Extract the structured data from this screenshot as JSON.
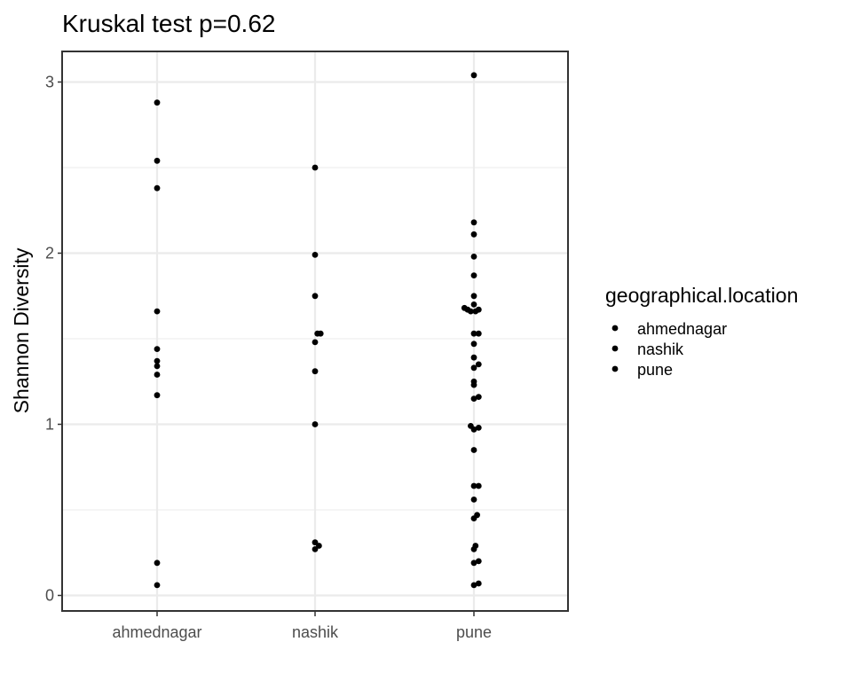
{
  "chart_data": {
    "type": "scatter",
    "title": "Kruskal test p=0.62",
    "xlabel": "",
    "ylabel": "Shannon Diversity",
    "categories": [
      "ahmednagar",
      "nashik",
      "pune"
    ],
    "y_ticks": [
      "0",
      "1",
      "2",
      "3"
    ],
    "ylim": [
      -0.09,
      3.12
    ],
    "grid": true,
    "legend": {
      "title": "geographical.location",
      "position": "right",
      "entries": [
        "ahmednagar",
        "nashik",
        "pune"
      ]
    },
    "point_color": "#000000",
    "series": [
      {
        "name": "ahmednagar",
        "points": [
          {
            "x": 0,
            "y": 2.88
          },
          {
            "x": 0,
            "y": 2.54
          },
          {
            "x": 0,
            "y": 2.38
          },
          {
            "x": 0,
            "y": 1.66
          },
          {
            "x": 0,
            "y": 1.44
          },
          {
            "x": 0,
            "y": 1.37
          },
          {
            "x": 0,
            "y": 1.34
          },
          {
            "x": 0,
            "y": 1.29
          },
          {
            "x": 0,
            "y": 1.17
          },
          {
            "x": 0,
            "y": 0.19
          },
          {
            "x": 0,
            "y": 0.06
          }
        ]
      },
      {
        "name": "nashik",
        "points": [
          {
            "x": 0,
            "y": 2.5
          },
          {
            "x": 0,
            "y": 1.99
          },
          {
            "x": 0,
            "y": 1.75
          },
          {
            "x": 0.015,
            "y": 1.53
          },
          {
            "x": 0.035,
            "y": 1.53
          },
          {
            "x": 0,
            "y": 1.48
          },
          {
            "x": 0,
            "y": 1.31
          },
          {
            "x": 0,
            "y": 1.0
          },
          {
            "x": 0,
            "y": 0.31
          },
          {
            "x": 0.025,
            "y": 0.29
          },
          {
            "x": 0,
            "y": 0.27
          }
        ]
      },
      {
        "name": "pune",
        "points": [
          {
            "x": 0,
            "y": 3.04
          },
          {
            "x": 0,
            "y": 2.18
          },
          {
            "x": 0,
            "y": 2.11
          },
          {
            "x": 0,
            "y": 1.98
          },
          {
            "x": 0,
            "y": 1.87
          },
          {
            "x": 0,
            "y": 1.75
          },
          {
            "x": 0,
            "y": 1.7
          },
          {
            "x": -0.06,
            "y": 1.68
          },
          {
            "x": -0.04,
            "y": 1.67
          },
          {
            "x": -0.02,
            "y": 1.66
          },
          {
            "x": 0.01,
            "y": 1.66
          },
          {
            "x": 0.03,
            "y": 1.67
          },
          {
            "x": 0,
            "y": 1.53
          },
          {
            "x": 0.03,
            "y": 1.53
          },
          {
            "x": 0,
            "y": 1.47
          },
          {
            "x": 0,
            "y": 1.39
          },
          {
            "x": 0,
            "y": 1.33
          },
          {
            "x": 0.03,
            "y": 1.35
          },
          {
            "x": 0,
            "y": 1.25
          },
          {
            "x": 0,
            "y": 1.23
          },
          {
            "x": 0,
            "y": 1.15
          },
          {
            "x": 0.03,
            "y": 1.16
          },
          {
            "x": -0.02,
            "y": 0.99
          },
          {
            "x": 0,
            "y": 0.97
          },
          {
            "x": 0.03,
            "y": 0.98
          },
          {
            "x": 0,
            "y": 0.85
          },
          {
            "x": 0,
            "y": 0.64
          },
          {
            "x": 0.03,
            "y": 0.64
          },
          {
            "x": 0,
            "y": 0.56
          },
          {
            "x": 0.02,
            "y": 0.47
          },
          {
            "x": 0,
            "y": 0.45
          },
          {
            "x": 0.01,
            "y": 0.29
          },
          {
            "x": 0,
            "y": 0.27
          },
          {
            "x": 0,
            "y": 0.19
          },
          {
            "x": 0.03,
            "y": 0.2
          },
          {
            "x": 0,
            "y": 0.06
          },
          {
            "x": 0.03,
            "y": 0.07
          }
        ]
      }
    ]
  }
}
